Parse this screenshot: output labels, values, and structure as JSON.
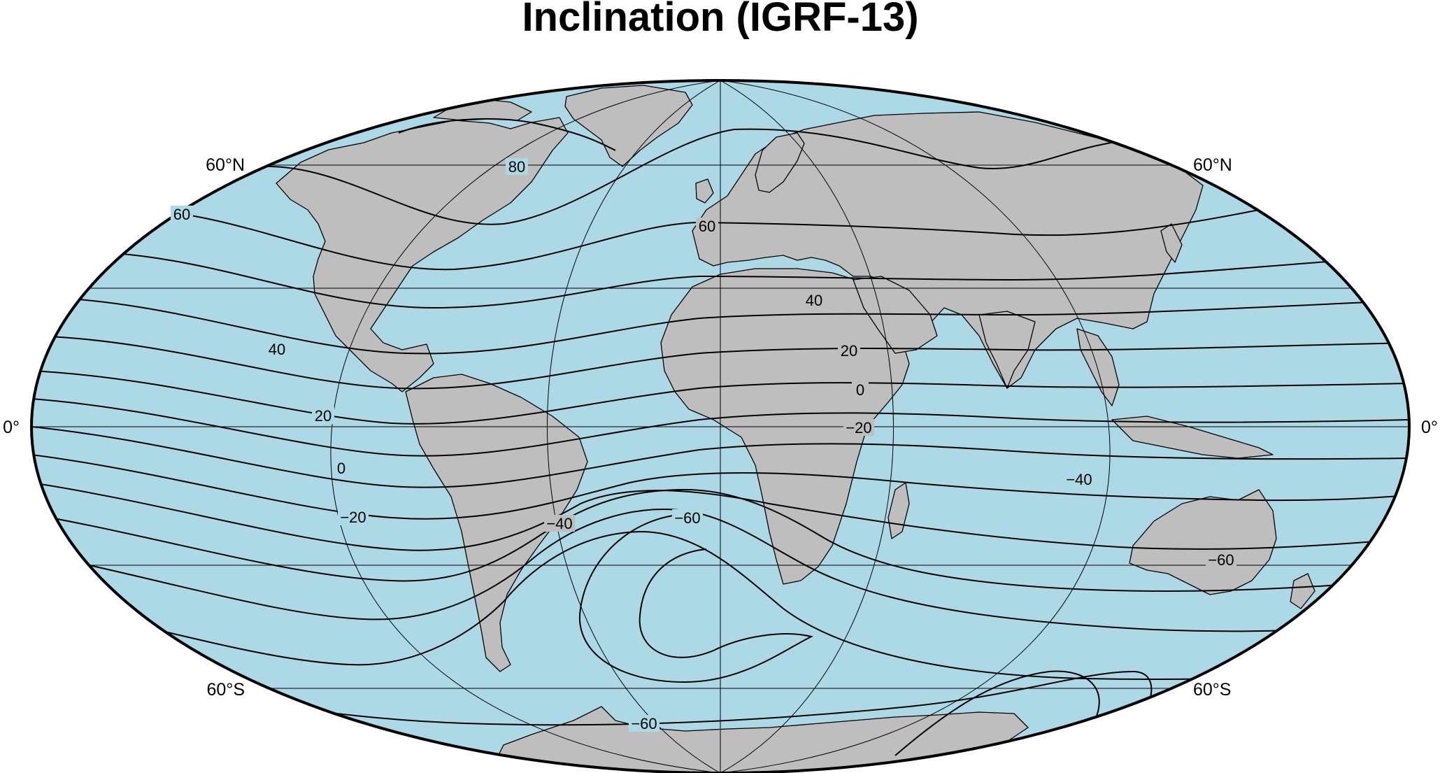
{
  "title": "Inclination (IGRF-13)",
  "colors": {
    "ocean": "#add8e6",
    "land": "#bebebe",
    "coastline": "#000000",
    "contour": "#000000",
    "grid": "#000000",
    "border": "#000000"
  },
  "map": {
    "projection": "Hammer",
    "grid_labels": {
      "lat_60n_left": "60°N",
      "lat_60n_right": "60°N",
      "lat_0_left": "0°",
      "lat_0_right": "0°",
      "lat_60s_left": "60°S",
      "lat_60s_right": "60°S"
    },
    "contour_interval": 10,
    "contour_labels": [
      {
        "text": "80"
      },
      {
        "text": "60"
      },
      {
        "text": "60"
      },
      {
        "text": "40"
      },
      {
        "text": "40"
      },
      {
        "text": "20"
      },
      {
        "text": "20"
      },
      {
        "text": "0"
      },
      {
        "text": "0"
      },
      {
        "text": "−20"
      },
      {
        "text": "−20"
      },
      {
        "text": "−40"
      },
      {
        "text": "−40"
      },
      {
        "text": "−60"
      },
      {
        "text": "−60"
      },
      {
        "text": "−60"
      }
    ]
  }
}
